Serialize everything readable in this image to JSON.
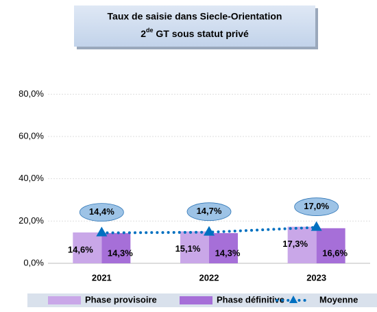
{
  "chart_data": {
    "type": "bar-line",
    "title": "Taux de saisie dans Siecle-Orientation",
    "subtitle": [
      "2",
      "de",
      " GT sous statut privé"
    ],
    "categories": [
      "2021",
      "2022",
      "2023"
    ],
    "series": [
      {
        "name": "Phase provisoire",
        "type": "bar",
        "color": "#c9a7e8",
        "values": [
          14.6,
          15.1,
          17.3
        ],
        "value_labels": [
          "14,6%",
          "15,1%",
          "17,3%"
        ]
      },
      {
        "name": "Phase définitive",
        "type": "bar",
        "color": "#a66fd8",
        "values": [
          14.3,
          14.3,
          16.6
        ],
        "value_labels": [
          "14,3%",
          "14,3%",
          "16,6%"
        ]
      },
      {
        "name": "Moyenne",
        "type": "line",
        "color": "#0070c0",
        "values": [
          14.4,
          14.7,
          17.0
        ],
        "value_labels": [
          "14,4%",
          "14,7%",
          "17,0%"
        ]
      }
    ],
    "ylim": [
      0,
      96
    ],
    "yticks": [
      {
        "value": 0,
        "label": "0,0%"
      },
      {
        "value": 20,
        "label": "20,0%"
      },
      {
        "value": 40,
        "label": "40,0%"
      },
      {
        "value": 60,
        "label": "60,0%"
      },
      {
        "value": 80,
        "label": "80,0%"
      }
    ],
    "grid": true,
    "legend": "bottom"
  }
}
